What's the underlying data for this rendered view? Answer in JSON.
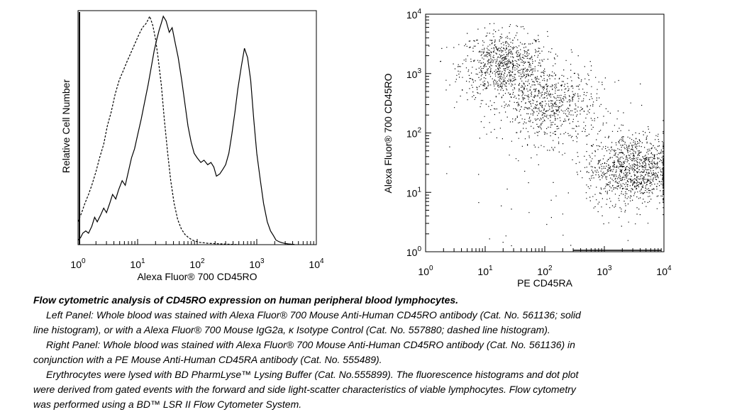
{
  "chart_data": [
    {
      "type": "line",
      "panel": "left",
      "xlabel": "Alexa Fluor® 700 CD45RO",
      "ylabel": "Relative Cell Number",
      "xscale": "log",
      "xlim": [
        1,
        10000
      ],
      "x_tick_labels": [
        {
          "base": "10",
          "exp": "0"
        },
        {
          "base": "10",
          "exp": "1"
        },
        {
          "base": "10",
          "exp": "2"
        },
        {
          "base": "10",
          "exp": "3"
        },
        {
          "base": "10",
          "exp": "4"
        }
      ],
      "series": [
        {
          "style": "solid",
          "x": [
            1.0,
            1.1,
            1.2,
            1.35,
            1.5,
            1.7,
            1.9,
            2.1,
            2.4,
            2.7,
            3.0,
            3.4,
            3.8,
            4.3,
            4.8,
            5.5,
            6.2,
            7.0,
            7.9,
            8.9,
            10,
            11.5,
            13,
            15,
            17,
            19,
            21,
            23,
            25,
            27,
            30,
            34,
            38,
            43,
            48,
            55,
            62,
            70,
            79,
            89,
            100,
            115,
            130,
            150,
            170,
            190,
            210,
            240,
            270,
            300,
            340,
            380,
            430,
            480,
            550,
            620,
            700,
            790,
            890,
            1000,
            1150,
            1300,
            1500,
            1700,
            1900,
            2100,
            2400,
            2700,
            3000,
            3400,
            3800,
            4300
          ],
          "y": [
            0.02,
            0.03,
            0.05,
            0.06,
            0.05,
            0.08,
            0.12,
            0.1,
            0.13,
            0.16,
            0.14,
            0.18,
            0.22,
            0.2,
            0.24,
            0.28,
            0.26,
            0.32,
            0.38,
            0.42,
            0.48,
            0.55,
            0.62,
            0.7,
            0.78,
            0.85,
            0.9,
            0.94,
            0.97,
            1.0,
            0.98,
            0.93,
            0.95,
            0.88,
            0.82,
            0.72,
            0.62,
            0.52,
            0.45,
            0.4,
            0.38,
            0.36,
            0.37,
            0.35,
            0.36,
            0.34,
            0.3,
            0.31,
            0.33,
            0.35,
            0.4,
            0.48,
            0.58,
            0.68,
            0.78,
            0.86,
            0.82,
            0.72,
            0.55,
            0.4,
            0.28,
            0.18,
            0.1,
            0.06,
            0.04,
            0.02,
            0.012,
            0.008,
            0.005,
            0.003,
            0.002,
            0.001
          ]
        },
        {
          "style": "dashed",
          "x": [
            1.0,
            1.15,
            1.3,
            1.5,
            1.7,
            2.0,
            2.3,
            2.7,
            3.1,
            3.6,
            4.2,
            4.9,
            5.7,
            6.6,
            7.7,
            9.0,
            10.5,
            12,
            14,
            16,
            18,
            20,
            22,
            25,
            28,
            32,
            36,
            41,
            47,
            54,
            62,
            72,
            83,
            96,
            110,
            130,
            150,
            180,
            220,
            270,
            330,
            400,
            500
          ],
          "y": [
            0.1,
            0.14,
            0.18,
            0.22,
            0.26,
            0.32,
            0.38,
            0.44,
            0.52,
            0.58,
            0.66,
            0.72,
            0.76,
            0.8,
            0.84,
            0.88,
            0.92,
            0.95,
            0.97,
            1.0,
            0.96,
            0.9,
            0.82,
            0.7,
            0.55,
            0.4,
            0.28,
            0.18,
            0.11,
            0.07,
            0.045,
            0.03,
            0.02,
            0.014,
            0.01,
            0.008,
            0.006,
            0.005,
            0.004,
            0.003,
            0.002,
            0.001,
            0.0
          ]
        }
      ]
    },
    {
      "type": "scatter",
      "panel": "right",
      "xlabel": "PE CD45RA",
      "ylabel": "Alexa Fluor® 700 CD45RO",
      "xscale": "log",
      "yscale": "log",
      "xlim": [
        1,
        10000
      ],
      "ylim": [
        1,
        10000
      ],
      "x_tick_labels": [
        {
          "base": "10",
          "exp": "0"
        },
        {
          "base": "10",
          "exp": "1"
        },
        {
          "base": "10",
          "exp": "2"
        },
        {
          "base": "10",
          "exp": "3"
        },
        {
          "base": "10",
          "exp": "4"
        }
      ],
      "y_tick_labels": [
        {
          "base": "10",
          "exp": "0"
        },
        {
          "base": "10",
          "exp": "1"
        },
        {
          "base": "10",
          "exp": "2"
        },
        {
          "base": "10",
          "exp": "3"
        },
        {
          "base": "10",
          "exp": "4"
        }
      ],
      "populations": [
        {
          "name": "",
          "center_x": 20,
          "center_y": 1400,
          "spread_log": 0.28,
          "count": 800
        },
        {
          "name": "",
          "center_x": 120,
          "center_y": 300,
          "spread_log": 0.32,
          "count": 700
        },
        {
          "name": "",
          "center_x": 3000,
          "center_y": 25,
          "spread_log": 0.3,
          "count": 1100
        }
      ]
    }
  ],
  "caption": {
    "title": "Flow cytometric analysis of CD45RO expression on human peripheral blood lymphocytes.",
    "lines": [
      "Left Panel: Whole blood was stained with Alexa Fluor® 700 Mouse Anti-Human CD45RO antibody (Cat. No. 561136; solid",
      "line histogram), or with a Alexa Fluor® 700 Mouse IgG2a, κ Isotype Control (Cat. No. 557880; dashed  line histogram).",
      "Right Panel: Whole blood was stained with Alexa Fluor® 700 Mouse Anti-Human CD45RO antibody (Cat. No. 561136) in",
      "conjunction with a PE Mouse Anti-Human CD45RA antibody (Cat. No. 555489).",
      "Erythrocytes were lysed with BD PharmLyse™ Lysing Buffer (Cat. No.555899). The fluorescence histograms and dot plot",
      "were derived from gated events with the forward and side light-scatter characteristics of viable lymphocytes. Flow cytometry",
      "was performed using a BD™ LSR II Flow Cytometer System."
    ]
  }
}
